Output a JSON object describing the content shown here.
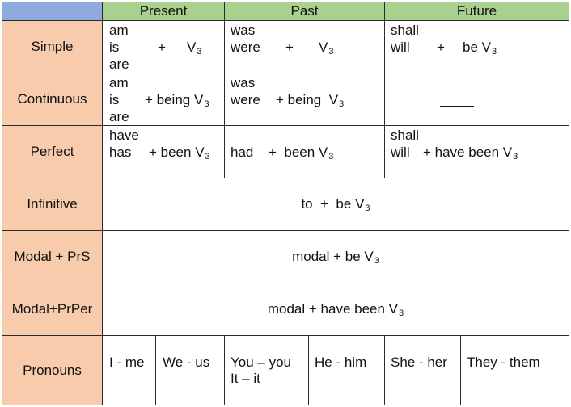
{
  "header": {
    "present": "Present",
    "past": "Past",
    "future": "Future"
  },
  "rows": {
    "simple": {
      "label": "Simple",
      "present": {
        "l1": "am",
        "l2a": "is",
        "l2b": "+",
        "l2c": "V",
        "l2sub": "3",
        "l3": "are"
      },
      "past": {
        "l1": "was",
        "l2a": "were",
        "l2b": "+",
        "l2c": "V",
        "l2sub": "3"
      },
      "future": {
        "l1": "shall",
        "l2a": "will",
        "l2b": "+",
        "l2c": "be V",
        "l2sub": "3"
      }
    },
    "continuous": {
      "label": "Continuous",
      "present": {
        "l1": "am",
        "l2a": "is",
        "l2b": "+ being V",
        "l2sub": "3",
        "l3": "are"
      },
      "past": {
        "l1": "was",
        "l2a": "were",
        "l2b": "+ being  V",
        "l2sub": "3"
      }
    },
    "perfect": {
      "label": "Perfect",
      "present": {
        "l1": "have",
        "l2a": "has",
        "l2b": "+ been V",
        "l2sub": "3"
      },
      "past": {
        "l2a": "had",
        "l2b": "+  been V",
        "l2sub": "3"
      },
      "future": {
        "l1": "shall",
        "l2a": "will",
        "l2b": "+ have been V",
        "l2sub": "3"
      }
    },
    "infinitive": {
      "label": "Infinitive",
      "text": "to  +  be V",
      "sub": "3"
    },
    "modal_prs": {
      "label": "Modal + PrS",
      "text": "modal + be V",
      "sub": "3"
    },
    "modal_prper": {
      "label": "Modal+PrPer",
      "text": "modal + have been V",
      "sub": "3"
    },
    "pronouns": {
      "label": "Pronouns",
      "items": [
        "I - me",
        "We - us",
        "You – you",
        "It – it",
        "He - him",
        "She - her",
        "They - them"
      ]
    }
  }
}
